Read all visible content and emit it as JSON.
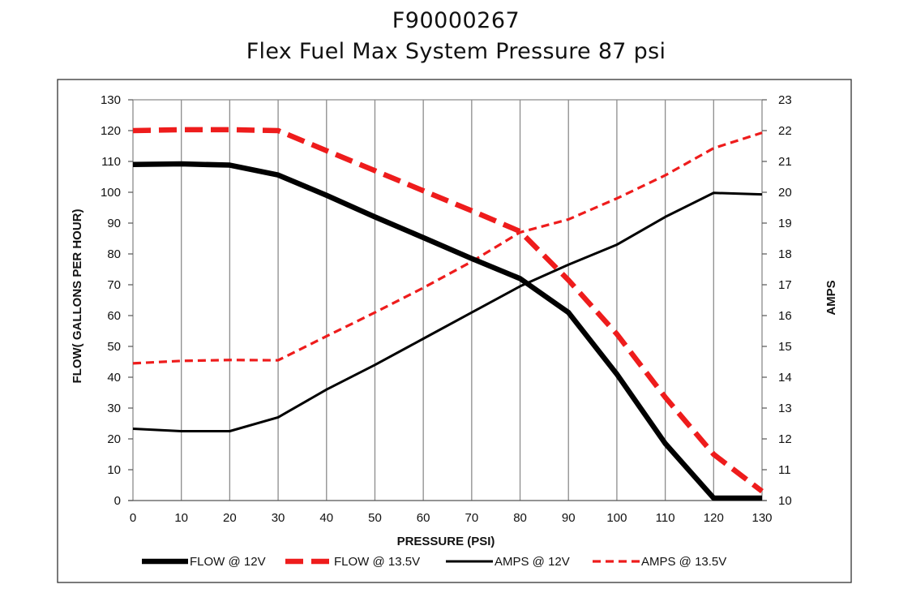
{
  "chart_data": {
    "type": "line",
    "title": "F90000267",
    "subtitle": "Flex Fuel Max System Pressure 87 psi",
    "xlabel": "PRESSURE (PSI)",
    "ylabel": "FLOW( GALLONS PER HOUR)",
    "y2label": "AMPS",
    "xlim": [
      0,
      130
    ],
    "ylim": [
      0,
      130
    ],
    "y2lim": [
      10,
      23
    ],
    "x_ticks": [
      0,
      10,
      20,
      30,
      40,
      50,
      60,
      70,
      80,
      90,
      100,
      110,
      120,
      130
    ],
    "y_ticks": [
      0,
      10,
      20,
      30,
      40,
      50,
      60,
      70,
      80,
      90,
      100,
      110,
      120,
      130
    ],
    "y2_ticks": [
      10,
      11,
      12,
      13,
      14,
      15,
      16,
      17,
      18,
      19,
      20,
      21,
      22,
      23
    ],
    "grid": "vertical",
    "legend_position": "bottom",
    "x": [
      0,
      10,
      20,
      30,
      40,
      50,
      60,
      70,
      80,
      90,
      100,
      110,
      120,
      130
    ],
    "series": [
      {
        "name": "FLOW @ 12V",
        "axis": "left",
        "color": "#000000",
        "style": "solid-thick",
        "values": [
          109,
          109.2,
          108.8,
          105.6,
          99,
          92,
          85.3,
          78.5,
          72,
          61,
          41,
          18.5,
          0.8,
          0.8
        ]
      },
      {
        "name": "FLOW @ 13.5V",
        "axis": "left",
        "color": "#ee1c1c",
        "style": "dashed-thick",
        "values": [
          120,
          120.3,
          120.3,
          120,
          113.5,
          107,
          100.5,
          94,
          87.3,
          71.5,
          54,
          33.5,
          15,
          3
        ]
      },
      {
        "name": "AMPS @ 12V",
        "axis": "right",
        "color": "#000000",
        "style": "solid-thin",
        "values": [
          12.33,
          12.25,
          12.25,
          12.7,
          13.6,
          14.4,
          15.25,
          16.1,
          16.95,
          17.65,
          18.3,
          19.2,
          19.98,
          19.93
        ]
      },
      {
        "name": "AMPS @ 13.5V",
        "axis": "right",
        "color": "#ee1c1c",
        "style": "dashed-thin",
        "values": [
          14.45,
          14.53,
          14.56,
          14.55,
          15.33,
          16.1,
          16.9,
          17.75,
          18.7,
          19.12,
          19.8,
          20.55,
          21.43,
          21.93
        ]
      }
    ]
  }
}
